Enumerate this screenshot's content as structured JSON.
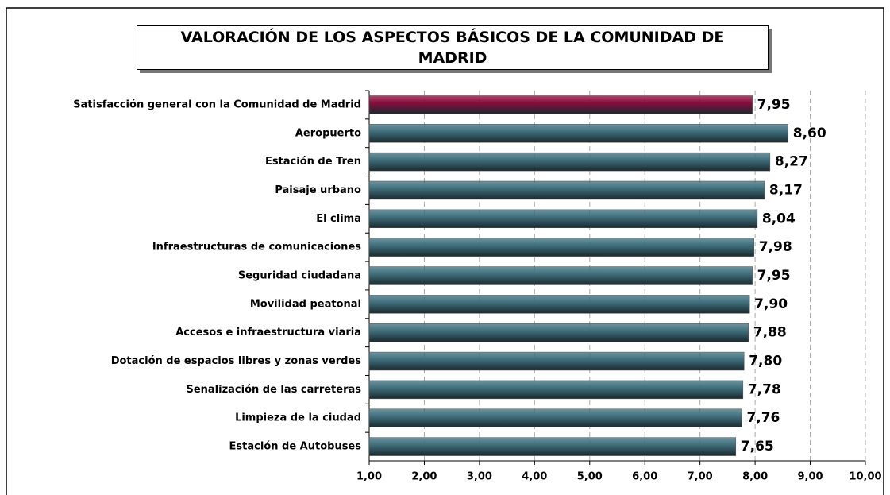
{
  "chart_data": {
    "type": "bar",
    "orientation": "horizontal",
    "title": "VALORACIÓN DE LOS ASPECTOS BÁSICOS DE LA COMUNIDAD DE MADRID",
    "categories": [
      "Satisfacción general con la Comunidad de Madrid",
      "Aeropuerto",
      "Estación de Tren",
      "Paisaje urbano",
      "El clima",
      "Infraestructuras de comunicaciones",
      "Seguridad ciudadana",
      "Movilidad peatonal",
      "Accesos e infraestructura viaria",
      "Dotación de espacios libres y zonas verdes",
      "Señalización de las carreteras",
      "Limpieza de la ciudad",
      "Estación de Autobuses"
    ],
    "values": [
      7.95,
      8.6,
      8.27,
      8.17,
      8.04,
      7.98,
      7.95,
      7.9,
      7.88,
      7.8,
      7.78,
      7.76,
      7.65
    ],
    "value_labels": [
      "7,95",
      "8,60",
      "8,27",
      "8,17",
      "8,04",
      "7,98",
      "7,95",
      "7,90",
      "7,88",
      "7,80",
      "7,78",
      "7,76",
      "7,65"
    ],
    "colors": [
      "#8a0b3c",
      "#3f6f7c",
      "#3f6f7c",
      "#3f6f7c",
      "#3f6f7c",
      "#3f6f7c",
      "#3f6f7c",
      "#3f6f7c",
      "#3f6f7c",
      "#3f6f7c",
      "#3f6f7c",
      "#3f6f7c",
      "#3f6f7c"
    ],
    "xlim": [
      1,
      10
    ],
    "xticks": [
      {
        "value": 1,
        "label": "1,00"
      },
      {
        "value": 2,
        "label": "2,00"
      },
      {
        "value": 3,
        "label": "3,00"
      },
      {
        "value": 4,
        "label": "4,00"
      },
      {
        "value": 5,
        "label": "5,00"
      },
      {
        "value": 6,
        "label": "6,00"
      },
      {
        "value": 7,
        "label": "7,00"
      },
      {
        "value": 8,
        "label": "8,00"
      },
      {
        "value": 9,
        "label": "9,00"
      },
      {
        "value": 10,
        "label": "10,00"
      }
    ],
    "grid": true
  }
}
